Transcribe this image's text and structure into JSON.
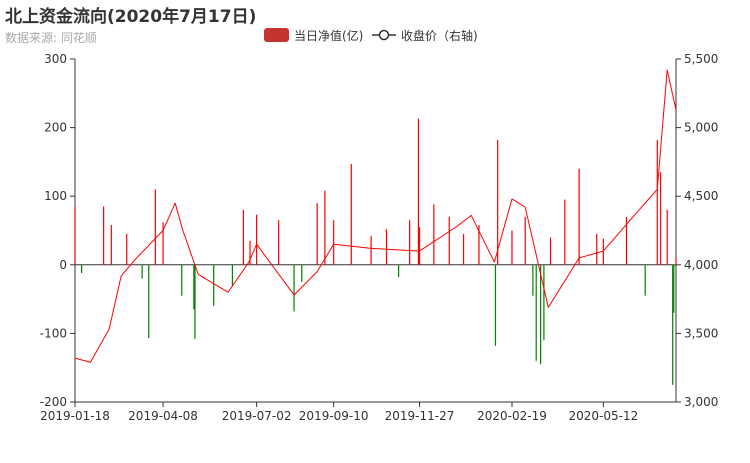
{
  "chart_data": {
    "type": "bar+line",
    "title": "北上资金流向(2020年7月17日)",
    "subtitle": "数据来源: 同花顺",
    "legend": {
      "placement": "top-center",
      "items": [
        {
          "name": "当日净值(亿)",
          "marker": "bar",
          "color": "#c23531"
        },
        {
          "name": "收盘价（右轴)",
          "marker": "line",
          "color": "#333333"
        }
      ]
    },
    "x_tick_labels": [
      "2019-01-18",
      "2019-04-08",
      "2019-07-02",
      "2019-09-10",
      "2019-11-27",
      "2020-02-19",
      "2020-05-12"
    ],
    "x_range": [
      "2019-01-18",
      "2020-07-17"
    ],
    "y_left": {
      "range": [
        -200,
        300
      ],
      "ticks": [
        -200,
        -100,
        0,
        100,
        200,
        300
      ]
    },
    "y_right": {
      "range": [
        3000,
        5500
      ],
      "ticks": [
        "3,000",
        "3,500",
        "4,000",
        "4,500",
        "5,000",
        "5,500"
      ]
    },
    "colors": {
      "positive": "#ff0000",
      "negative": "#008000",
      "price_line": "#ff0000",
      "axis": "#333333"
    },
    "series": [
      {
        "name": "当日净值(亿)",
        "kind": "bar",
        "axis": "left",
        "sample_points": [
          {
            "date": "2019-01-18",
            "value": 85
          },
          {
            "date": "2019-01-24",
            "value": -12
          },
          {
            "date": "2019-02-13",
            "value": 85
          },
          {
            "date": "2019-02-20",
            "value": 58
          },
          {
            "date": "2019-03-06",
            "value": 45
          },
          {
            "date": "2019-03-20",
            "value": -20
          },
          {
            "date": "2019-03-26",
            "value": -107
          },
          {
            "date": "2019-04-01",
            "value": 110
          },
          {
            "date": "2019-04-08",
            "value": 62
          },
          {
            "date": "2019-04-25",
            "value": -45
          },
          {
            "date": "2019-05-06",
            "value": -65
          },
          {
            "date": "2019-05-07",
            "value": -108
          },
          {
            "date": "2019-05-24",
            "value": -60
          },
          {
            "date": "2019-06-10",
            "value": -30
          },
          {
            "date": "2019-06-20",
            "value": 80
          },
          {
            "date": "2019-06-26",
            "value": 35
          },
          {
            "date": "2019-07-02",
            "value": 73
          },
          {
            "date": "2019-07-22",
            "value": 65
          },
          {
            "date": "2019-08-05",
            "value": -68
          },
          {
            "date": "2019-08-12",
            "value": -25
          },
          {
            "date": "2019-08-26",
            "value": 90
          },
          {
            "date": "2019-09-02",
            "value": 108
          },
          {
            "date": "2019-09-10",
            "value": 65
          },
          {
            "date": "2019-09-26",
            "value": 147
          },
          {
            "date": "2019-10-14",
            "value": 42
          },
          {
            "date": "2019-10-28",
            "value": 52
          },
          {
            "date": "2019-11-08",
            "value": -18
          },
          {
            "date": "2019-11-18",
            "value": 65
          },
          {
            "date": "2019-11-26",
            "value": 213
          },
          {
            "date": "2019-11-27",
            "value": 55
          },
          {
            "date": "2019-12-10",
            "value": 88
          },
          {
            "date": "2019-12-24",
            "value": 70
          },
          {
            "date": "2020-01-06",
            "value": 45
          },
          {
            "date": "2020-01-20",
            "value": 58
          },
          {
            "date": "2020-02-04",
            "value": -118
          },
          {
            "date": "2020-02-06",
            "value": 182
          },
          {
            "date": "2020-02-19",
            "value": 50
          },
          {
            "date": "2020-03-02",
            "value": 70
          },
          {
            "date": "2020-03-09",
            "value": -45
          },
          {
            "date": "2020-03-12",
            "value": -140
          },
          {
            "date": "2020-03-16",
            "value": -145
          },
          {
            "date": "2020-03-19",
            "value": -110
          },
          {
            "date": "2020-03-25",
            "value": 40
          },
          {
            "date": "2020-04-07",
            "value": 95
          },
          {
            "date": "2020-04-20",
            "value": 140
          },
          {
            "date": "2020-05-06",
            "value": 45
          },
          {
            "date": "2020-05-12",
            "value": 38
          },
          {
            "date": "2020-06-02",
            "value": 70
          },
          {
            "date": "2020-06-19",
            "value": -45
          },
          {
            "date": "2020-06-30",
            "value": 182
          },
          {
            "date": "2020-07-03",
            "value": 135
          },
          {
            "date": "2020-07-09",
            "value": 80
          },
          {
            "date": "2020-07-14",
            "value": -175
          },
          {
            "date": "2020-07-15",
            "value": -70
          },
          {
            "date": "2020-07-17",
            "value": 10
          }
        ]
      },
      {
        "name": "收盘价（右轴)",
        "kind": "line",
        "axis": "right",
        "sample_points": [
          {
            "date": "2019-01-18",
            "value": 3320
          },
          {
            "date": "2019-02-01",
            "value": 3290
          },
          {
            "date": "2019-02-18",
            "value": 3530
          },
          {
            "date": "2019-03-01",
            "value": 3920
          },
          {
            "date": "2019-03-15",
            "value": 4050
          },
          {
            "date": "2019-04-08",
            "value": 4250
          },
          {
            "date": "2019-04-19",
            "value": 4450
          },
          {
            "date": "2019-04-26",
            "value": 4250
          },
          {
            "date": "2019-05-10",
            "value": 3930
          },
          {
            "date": "2019-06-06",
            "value": 3800
          },
          {
            "date": "2019-06-25",
            "value": 4020
          },
          {
            "date": "2019-07-02",
            "value": 4150
          },
          {
            "date": "2019-08-05",
            "value": 3780
          },
          {
            "date": "2019-08-26",
            "value": 3950
          },
          {
            "date": "2019-09-10",
            "value": 4150
          },
          {
            "date": "2019-10-14",
            "value": 4120
          },
          {
            "date": "2019-11-27",
            "value": 4100
          },
          {
            "date": "2019-12-31",
            "value": 4280
          },
          {
            "date": "2020-01-13",
            "value": 4360
          },
          {
            "date": "2020-02-03",
            "value": 4020
          },
          {
            "date": "2020-02-19",
            "value": 4480
          },
          {
            "date": "2020-03-02",
            "value": 4420
          },
          {
            "date": "2020-03-23",
            "value": 3690
          },
          {
            "date": "2020-04-20",
            "value": 4050
          },
          {
            "date": "2020-05-12",
            "value": 4100
          },
          {
            "date": "2020-06-08",
            "value": 4350
          },
          {
            "date": "2020-06-30",
            "value": 4550
          },
          {
            "date": "2020-07-09",
            "value": 5420
          },
          {
            "date": "2020-07-17",
            "value": 5130
          }
        ]
      }
    ]
  }
}
